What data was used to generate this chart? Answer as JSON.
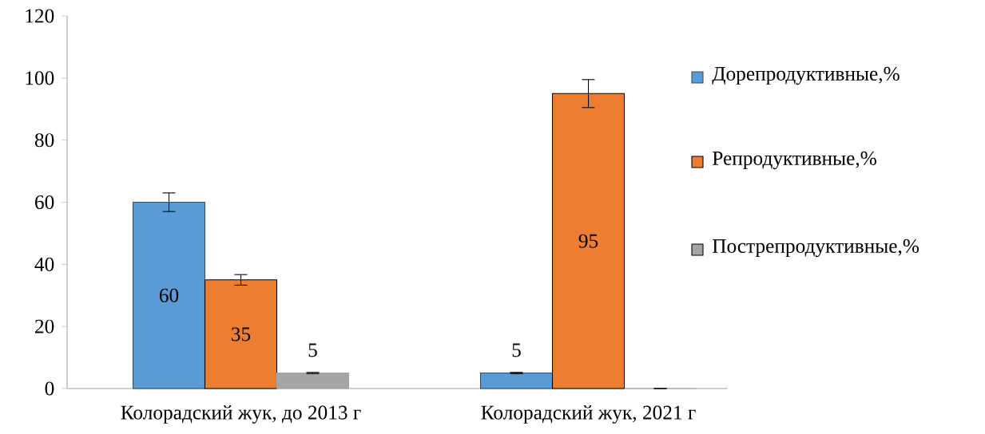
{
  "chart_data": {
    "type": "bar",
    "categories": [
      "Колорадский жук, до 2013 г",
      "Колорадский жук, 2021 г"
    ],
    "series": [
      {
        "name": "Дорепродуктивные,%",
        "color": "#5b9bd5",
        "values": [
          60,
          5
        ],
        "errors": [
          3,
          0.2
        ],
        "value_labels": [
          "60",
          "5"
        ]
      },
      {
        "name": "Репродуктивные,%",
        "color": "#ed7d31",
        "values": [
          35,
          95
        ],
        "errors": [
          1.7,
          4.5
        ],
        "value_labels": [
          "35",
          "95"
        ]
      },
      {
        "name": "Пострепродуктивные,%",
        "color": "#a5a5a5",
        "values": [
          5,
          0
        ],
        "errors": [
          0.2,
          0
        ],
        "value_labels": [
          "5",
          null
        ]
      }
    ],
    "ylim": [
      0,
      120
    ],
    "yticks": [
      0,
      20,
      40,
      60,
      80,
      100,
      120
    ],
    "legend": "right"
  }
}
